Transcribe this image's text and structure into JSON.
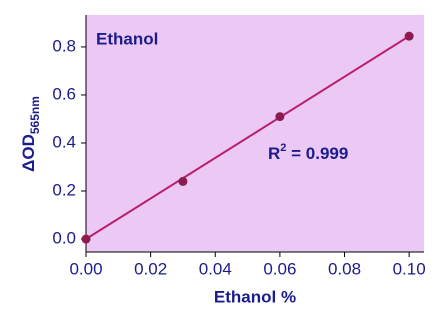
{
  "chart_data": {
    "type": "scatter",
    "title": "Ethanol",
    "x_label": "Ethanol %",
    "y_label": {
      "main": "ΔOD",
      "sub": "565nm"
    },
    "annotation": {
      "base": "R",
      "sup": "2",
      "rest": " = 0.999"
    },
    "series": [
      {
        "name": "Ethanol",
        "color": "#8c1c50",
        "x": [
          0,
          0.03,
          0.06,
          0.1
        ],
        "values": [
          0,
          0.24,
          0.51,
          0.845
        ]
      }
    ],
    "fit": {
      "color": "#b8206e",
      "x": [
        0,
        0.1
      ],
      "values": [
        0,
        0.845
      ]
    },
    "background": "#ecc8f4",
    "xlim": [
      0,
      0.1046
    ],
    "ylim": [
      -0.054,
      0.933
    ],
    "xticks": [
      {
        "value": 0,
        "label": "0.00"
      },
      {
        "value": 0.02,
        "label": "0.02"
      },
      {
        "value": 0.04,
        "label": "0.04"
      },
      {
        "value": 0.06,
        "label": "0.06"
      },
      {
        "value": 0.08,
        "label": "0.08"
      },
      {
        "value": 0.1,
        "label": "0.10"
      }
    ],
    "yticks": [
      {
        "value": 0,
        "label": "0.0"
      },
      0.2,
      0.4,
      0.6,
      0.8
    ]
  }
}
